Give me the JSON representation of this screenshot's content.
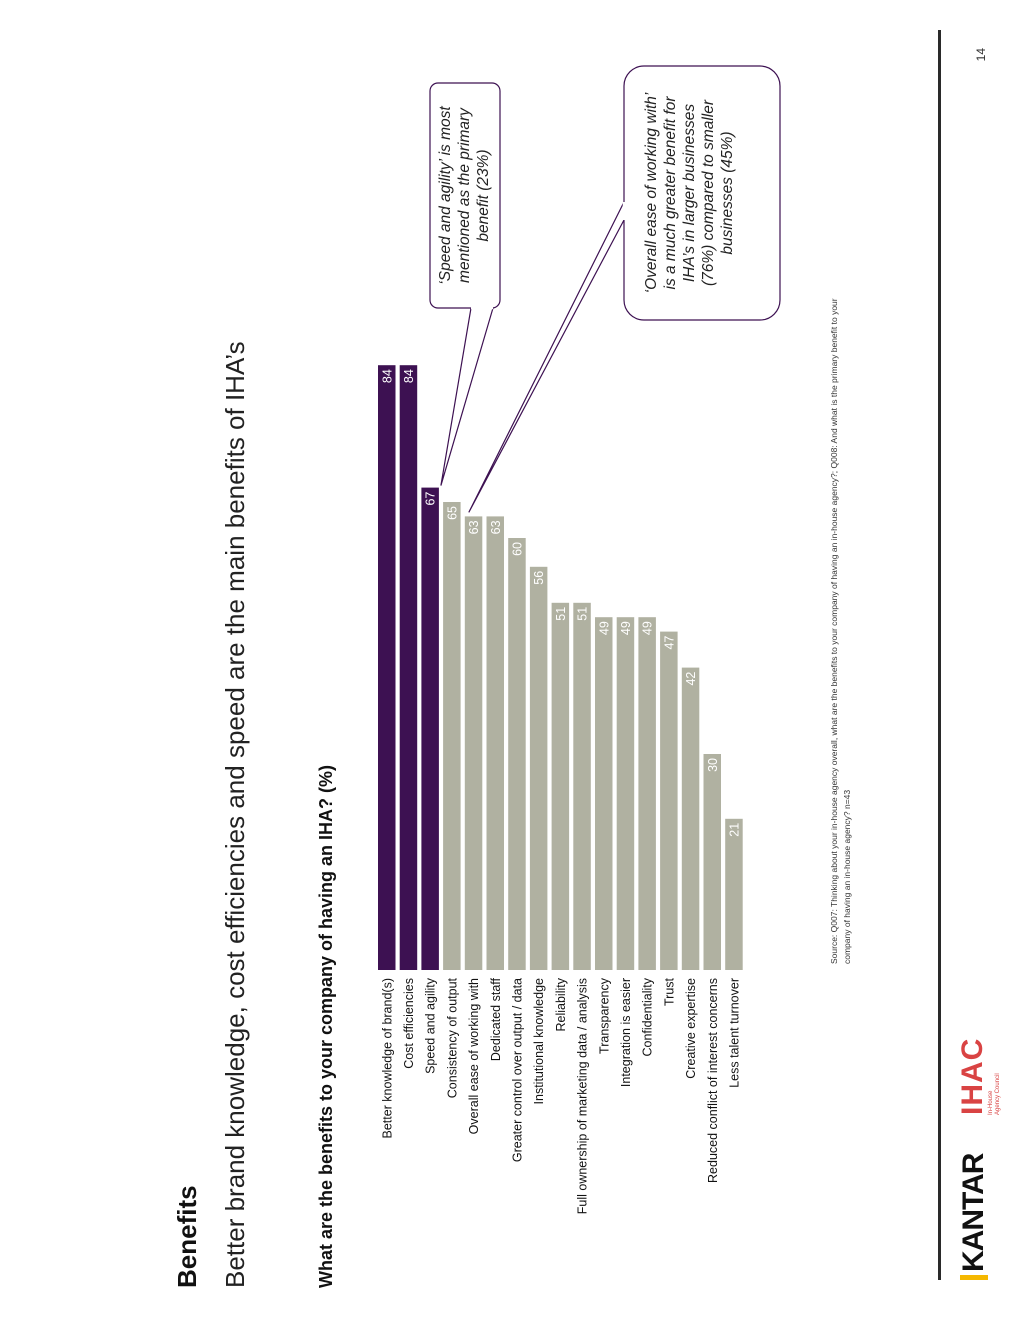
{
  "slide": {
    "section": "Benefits",
    "headline": "Better brand knowledge, cost efficiencies and speed are the main benefits of IHA’s",
    "question": "What are the benefits to your company of having an IHA? (%)",
    "source": "Source: Q007: Thinking about your in-house agency overall, what are the benefits to your company of having an in-house agency?; Q008: And what is the primary benefit to your company of having an in-house agency? n=43",
    "page_number": "14"
  },
  "logos": {
    "kantar": "KANTAR",
    "iha": "IHAC",
    "iha_sub_1": "In-House",
    "iha_sub_2": "Agency Council"
  },
  "callouts": [
    {
      "lines": [
        "‘Speed and agility’ is most",
        "mentioned as the primary",
        "benefit (23%)"
      ]
    },
    {
      "lines": [
        "‘Overall ease of working with’",
        "is a much greater benefit for",
        "IHA’s in larger businesses",
        "(76%) compared to smaller",
        "businesses (45%)"
      ]
    }
  ],
  "colors": {
    "highlight": "#3d1152",
    "neutral": "#b0b1a1",
    "callout_border": "#3d1152"
  },
  "chart_data": {
    "type": "bar",
    "orientation": "horizontal",
    "title": "What are the benefits to your company of having an IHA? (%)",
    "categories": [
      "Better knowledge of brand(s)",
      "Cost efficiencies",
      "Speed and agility",
      "Consistency of output",
      "Overall ease of working with",
      "Dedicated staff",
      "Greater control over output / data",
      "Institutional knowledge",
      "Reliability",
      "Full ownership of marketing data / analysis",
      "Transparency",
      "Integration is easier",
      "Confidentiality",
      "Trust",
      "Creative expertise",
      "Reduced conflict of interest concerns",
      "Less talent turnover"
    ],
    "values": [
      84,
      84,
      67,
      65,
      63,
      63,
      60,
      56,
      51,
      51,
      49,
      49,
      49,
      47,
      42,
      30,
      21
    ],
    "highlighted": [
      true,
      true,
      true,
      false,
      false,
      false,
      false,
      false,
      false,
      false,
      false,
      false,
      false,
      false,
      false,
      false,
      false
    ],
    "xlim": [
      0,
      100
    ],
    "unit": "%",
    "grid": false
  }
}
